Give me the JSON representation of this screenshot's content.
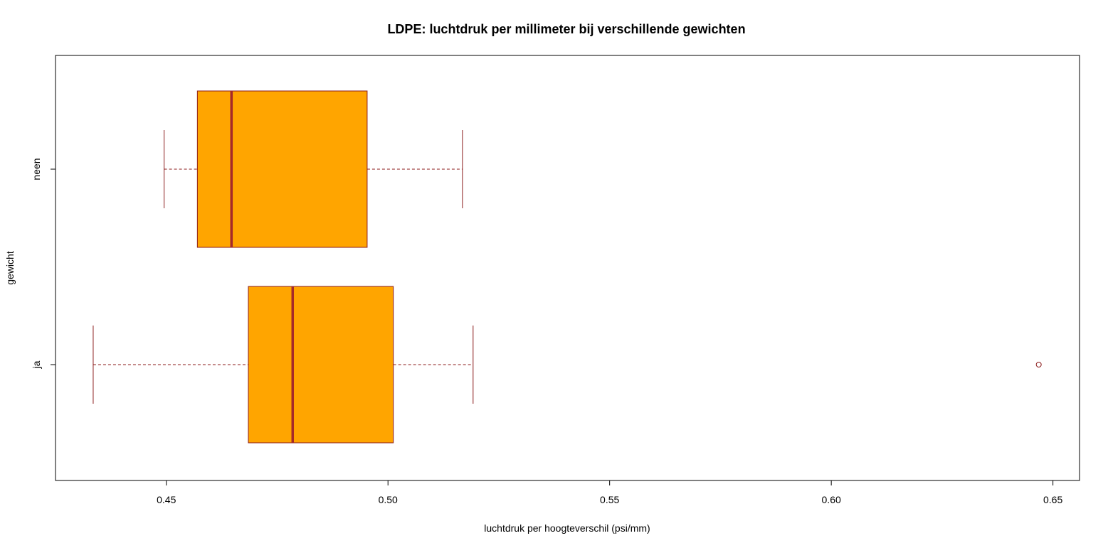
{
  "chart_data": {
    "type": "boxplot",
    "orientation": "horizontal",
    "title": "LDPE: luchtdruk per millimeter bij verschillende gewichten",
    "xlabel": "luchtdruk per hoogteverschil (psi/mm)",
    "ylabel": "gewicht",
    "xlim": [
      0.425,
      0.656
    ],
    "xticks": [
      0.45,
      0.5,
      0.55,
      0.6,
      0.65
    ],
    "xtick_labels": [
      "0.45",
      "0.50",
      "0.55",
      "0.60",
      "0.65"
    ],
    "grid": false,
    "categories": [
      "ja",
      "neen"
    ],
    "boxes": [
      {
        "category": "ja",
        "whisker_low": 0.4335,
        "q1": 0.4685,
        "median": 0.4785,
        "q3": 0.5012,
        "whisker_high": 0.5192,
        "outliers": [
          0.6468
        ]
      },
      {
        "category": "neen",
        "whisker_low": 0.4495,
        "q1": 0.457,
        "median": 0.4647,
        "q3": 0.4953,
        "whisker_high": 0.5168,
        "outliers": []
      }
    ],
    "colors": {
      "box_fill": "#FFA500",
      "box_border": "#8B1A1A",
      "median": "#A52A2A",
      "whisker": "#8B1A1A",
      "outlier": "#8B1A1A"
    }
  }
}
